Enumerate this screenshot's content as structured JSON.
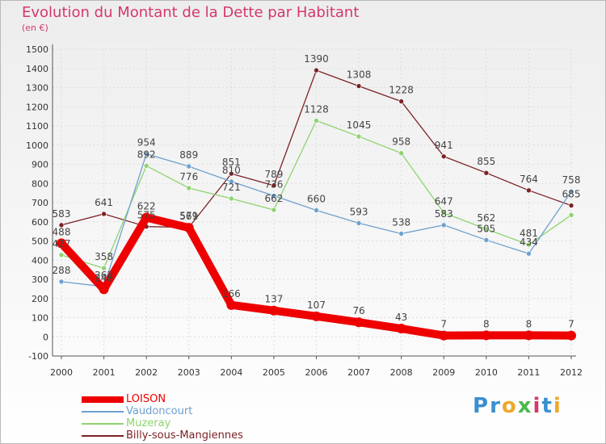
{
  "header": {
    "title": "Evolution du Montant de la Dette par Habitant",
    "unit": "(en €)"
  },
  "colors": {
    "title": "#d5386b",
    "grid": "#dddddd",
    "axis": "#555555",
    "tick_text": "#333333",
    "value_text": "#444444"
  },
  "logo": {
    "text": "Proxiti",
    "colors": [
      "#3a8fd0",
      "#3a8fd0",
      "#f0a72a",
      "#4cb84c",
      "#d5386b",
      "#3a8fd0",
      "#f0a72a"
    ]
  },
  "chart_data": {
    "type": "line",
    "title": "Evolution du Montant de la Dette par Habitant",
    "ylabel": "(en €)",
    "xlabel": "",
    "categories": [
      "2000",
      "2001",
      "2002",
      "2003",
      "2004",
      "2005",
      "2006",
      "2007",
      "2008",
      "2009",
      "2010",
      "2011",
      "2012"
    ],
    "ylim": [
      -100,
      1500
    ],
    "yticks": [
      "-100",
      "0",
      "100",
      "200",
      "300",
      "400",
      "500",
      "600",
      "700",
      "800",
      "900",
      "1000",
      "1100",
      "1200",
      "1300",
      "1400",
      "1500"
    ],
    "grid": true,
    "legend": "bottom-left",
    "series": [
      {
        "name": "Billy-sous-Mangiennes",
        "color": "#7b2226",
        "values": [
          583,
          641,
          575,
          571,
          851,
          789,
          1390,
          1308,
          1228,
          941,
          855,
          764,
          685
        ],
        "labels": [
          "583",
          "641",
          "575",
          "571",
          "851",
          "789",
          "1390",
          "1308",
          "1228",
          "941",
          "855",
          "764",
          "685"
        ]
      },
      {
        "name": "Muzeray",
        "color": "#8ed36e",
        "values": [
          427,
          358,
          892,
          776,
          721,
          662,
          1128,
          1045,
          958,
          647,
          562,
          481,
          635
        ],
        "labels": [
          "427",
          "358",
          "892",
          "776",
          "721",
          "662",
          "1128",
          "1045",
          "958",
          "647",
          "562",
          "481",
          ""
        ]
      },
      {
        "name": "Vaudoncourt",
        "color": "#6ea0cf",
        "values": [
          288,
          262,
          954,
          889,
          810,
          736,
          660,
          593,
          538,
          583,
          505,
          434,
          758
        ],
        "labels": [
          "288",
          "262",
          "954",
          "889",
          "810",
          "736",
          "660",
          "593",
          "538",
          "583",
          "505",
          "434",
          "758"
        ]
      },
      {
        "name": "LOISON",
        "color": "#ee0000",
        "values": [
          488,
          248,
          622,
          569,
          166,
          137,
          107,
          76,
          43,
          7,
          8,
          8,
          7
        ],
        "labels": [
          "488",
          "248",
          "622",
          "569",
          "166",
          "137",
          "107",
          "76",
          "43",
          "7",
          "8",
          "8",
          "7"
        ]
      }
    ]
  },
  "legend": {
    "items": [
      {
        "name": "LOISON",
        "color": "#ee0000"
      },
      {
        "name": "Vaudoncourt",
        "color": "#6ea0cf"
      },
      {
        "name": "Muzeray",
        "color": "#8ed36e"
      },
      {
        "name": "Billy-sous-Mangiennes",
        "color": "#7b2226"
      }
    ]
  }
}
